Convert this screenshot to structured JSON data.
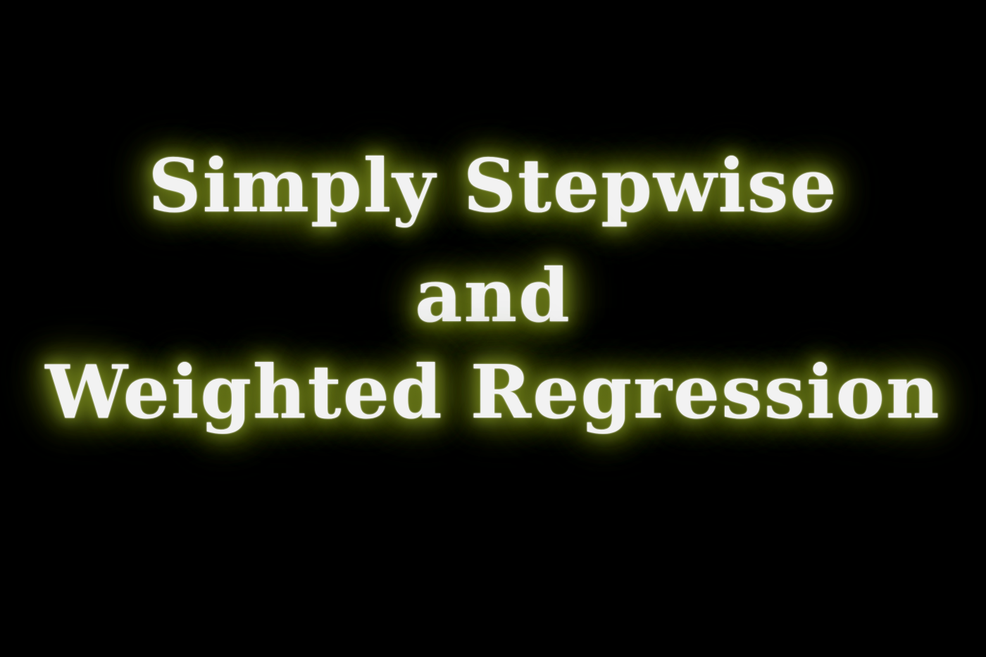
{
  "title": {
    "line1": "Simply Stepwise",
    "line2": "and",
    "line3": "Weighted Regression"
  },
  "colors": {
    "background": "#000000",
    "text": "#f2f2f2",
    "glow": "#6b7a1a"
  }
}
